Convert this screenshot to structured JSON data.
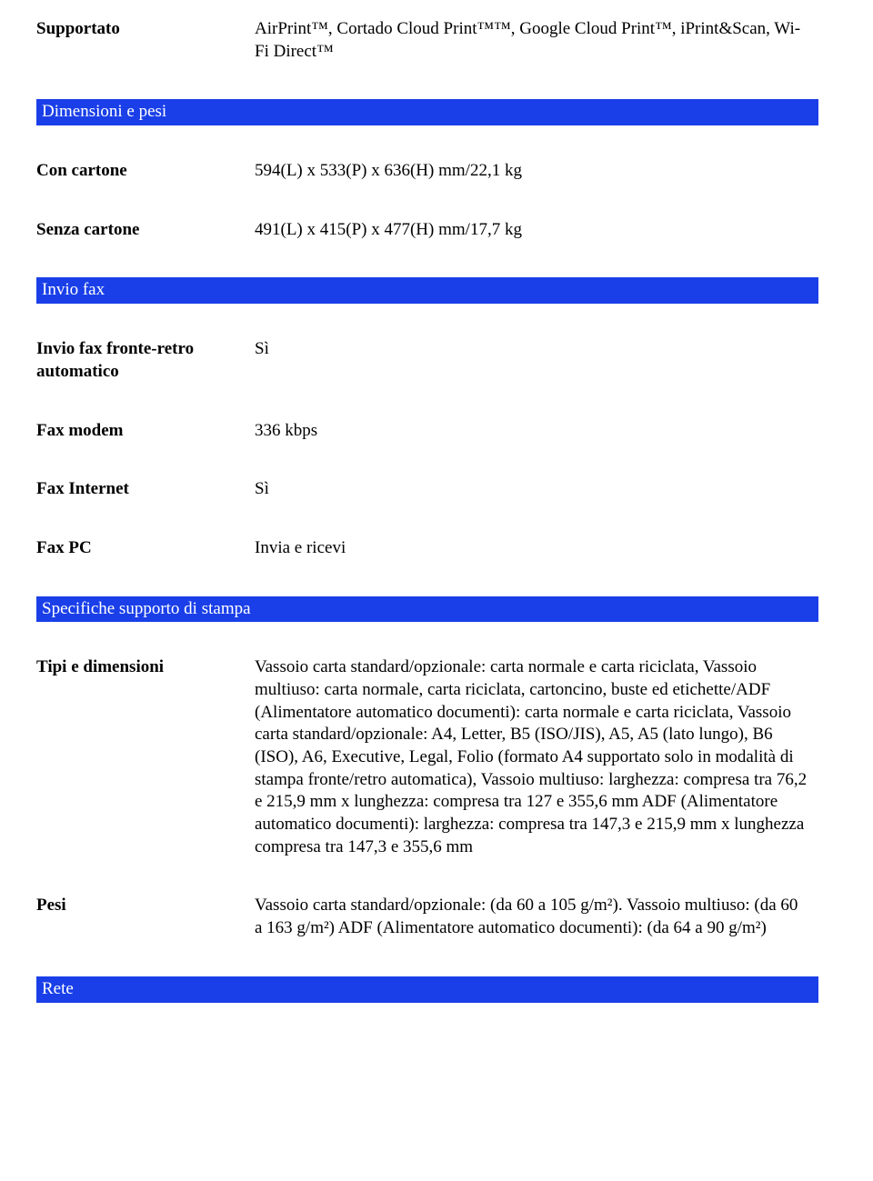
{
  "rows": [
    {
      "label": "Supportato",
      "value": "AirPrint™, Cortado Cloud Print™™, Google Cloud Print™, iPrint&Scan, Wi-Fi Direct™"
    }
  ],
  "section_dimensioni": "Dimensioni e pesi",
  "rows_dimensioni": [
    {
      "label": "Con cartone",
      "value": "594(L) x 533(P) x 636(H) mm/22,1 kg"
    },
    {
      "label": "Senza cartone",
      "value": "491(L) x 415(P) x 477(H) mm/17,7 kg"
    }
  ],
  "section_inviofax": "Invio fax",
  "rows_inviofax": [
    {
      "label": "Invio fax fronte-retro automatico",
      "value": "Sì"
    },
    {
      "label": "Fax modem",
      "value": "336 kbps"
    },
    {
      "label": "Fax Internet",
      "value": "Sì"
    },
    {
      "label": "Fax PC",
      "value": "Invia e ricevi"
    }
  ],
  "section_specifiche": "Specifiche supporto di stampa",
  "rows_specifiche": [
    {
      "label": "Tipi e dimensioni",
      "value": "Vassoio carta standard/opzionale: carta normale e carta riciclata, Vassoio multiuso: carta normale, carta riciclata, cartoncino, buste ed etichette/ADF (Alimentatore automatico documenti): carta normale e carta riciclata, Vassoio carta standard/opzionale: A4, Letter, B5 (ISO/JIS), A5, A5 (lato lungo), B6 (ISO), A6, Executive, Legal, Folio (formato A4 supportato solo in modalità di stampa fronte/retro automatica), Vassoio multiuso: larghezza: compresa tra 76,2 e 215,9 mm x lunghezza: compresa tra 127 e 355,6 mm ADF (Alimentatore automatico documenti): larghezza: compresa tra 147,3 e 215,9 mm x lunghezza compresa tra 147,3 e 355,6 mm"
    },
    {
      "label": "Pesi",
      "value": "Vassoio carta standard/opzionale: (da 60 a 105 g/m²). Vassoio multiuso: (da 60 a 163 g/m²) ADF (Alimentatore automatico documenti): (da 64 a 90 g/m²)"
    }
  ],
  "section_rete": "Rete"
}
